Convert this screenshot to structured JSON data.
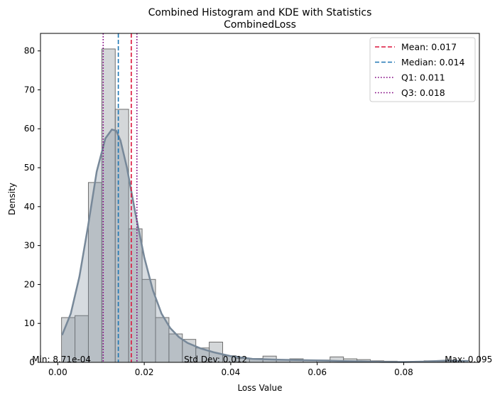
{
  "chart_data": {
    "type": "bar",
    "title": "Combined Histogram and KDE with Statistics",
    "subtitle": "CombinedLoss",
    "xlabel": "Loss Value",
    "ylabel": "Density",
    "xlim": [
      -0.004,
      0.0975
    ],
    "ylim": [
      0,
      84.5
    ],
    "xticks": [
      {
        "value": 0.0,
        "label": "0.00"
      },
      {
        "value": 0.02,
        "label": "0.02"
      },
      {
        "value": 0.04,
        "label": "0.04"
      },
      {
        "value": 0.06,
        "label": "0.06"
      },
      {
        "value": 0.08,
        "label": "0.08"
      }
    ],
    "yticks": [
      {
        "value": 0,
        "label": "0"
      },
      {
        "value": 10,
        "label": "10"
      },
      {
        "value": 20,
        "label": "20"
      },
      {
        "value": 30,
        "label": "30"
      },
      {
        "value": 40,
        "label": "40"
      },
      {
        "value": 50,
        "label": "50"
      },
      {
        "value": 60,
        "label": "60"
      },
      {
        "value": 70,
        "label": "70"
      },
      {
        "value": 80,
        "label": "80"
      }
    ],
    "grid": false,
    "histogram": {
      "bin_start": 0.00087,
      "bin_width": 0.003105,
      "values": [
        11.5,
        12.0,
        46.2,
        80.5,
        65.0,
        34.3,
        21.3,
        11.5,
        7.3,
        5.9,
        3.7,
        5.2,
        1.7,
        1.0,
        1.0,
        1.6,
        0.6,
        0.9,
        0.6,
        0.6,
        1.4,
        0.9,
        0.7,
        0.4,
        0.3,
        0.2,
        0.2,
        0.4,
        0.2,
        0.3
      ],
      "fill": "#b8bcc0",
      "edge": "#6f6f6f"
    },
    "kde": {
      "color": "#778899",
      "x": [
        0.001,
        0.003,
        0.005,
        0.007,
        0.009,
        0.011,
        0.0125,
        0.0135,
        0.0145,
        0.016,
        0.018,
        0.02,
        0.022,
        0.024,
        0.026,
        0.028,
        0.03,
        0.033,
        0.036,
        0.04,
        0.045,
        0.05,
        0.055,
        0.06,
        0.065,
        0.07,
        0.075,
        0.08,
        0.085,
        0.09,
        0.095
      ],
      "y": [
        7.0,
        12.5,
        22.0,
        35.0,
        49.0,
        57.5,
        59.8,
        59.5,
        57.0,
        50.0,
        38.0,
        27.0,
        18.5,
        12.5,
        8.8,
        6.5,
        5.0,
        3.6,
        2.6,
        1.6,
        0.9,
        0.7,
        0.6,
        0.5,
        0.35,
        0.25,
        0.12,
        0.08,
        0.2,
        0.45,
        0.35
      ]
    },
    "stat_lines": [
      {
        "label": "Mean: 0.017",
        "value": 0.017,
        "color": "#dc143c",
        "style": "dashed"
      },
      {
        "label": "Median: 0.014",
        "value": 0.014,
        "color": "#1f77b4",
        "style": "dashed"
      },
      {
        "label": "Q1: 0.011",
        "value": 0.0105,
        "color": "#800080",
        "style": "dotted"
      },
      {
        "label": "Q3: 0.018",
        "value": 0.0183,
        "color": "#800080",
        "style": "dotted"
      }
    ],
    "legend_position": "top-right",
    "annotations": [
      {
        "text": "Min: 8.71e-04",
        "x": 0.00087,
        "anchor": "middle"
      },
      {
        "text": "Std Dev: 0.012",
        "x": 0.0365,
        "anchor": "middle"
      },
      {
        "text": "Max: 0.095",
        "x": 0.095,
        "anchor": "middle"
      }
    ]
  }
}
